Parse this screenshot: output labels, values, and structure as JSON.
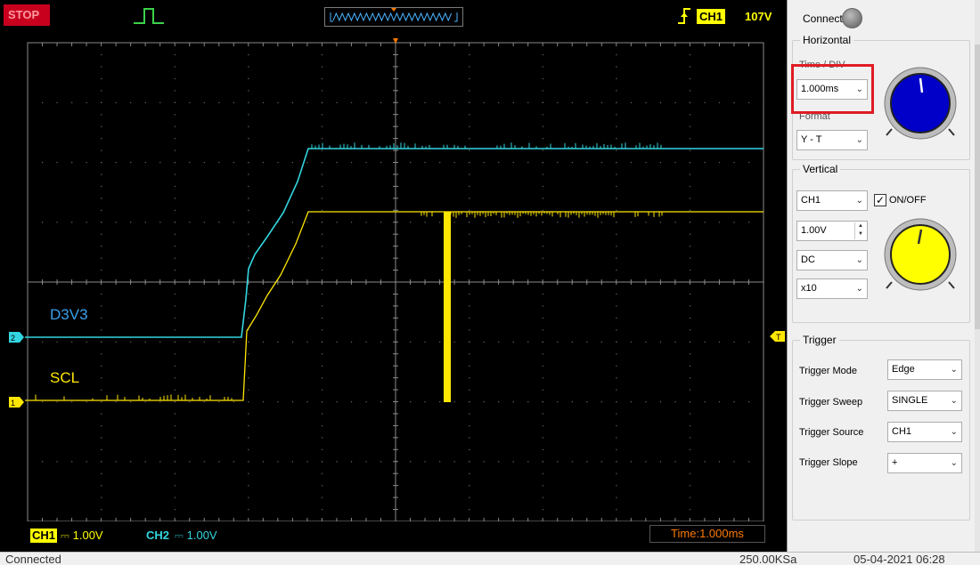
{
  "scope": {
    "status": "STOP",
    "trigger_channel": "CH1",
    "trigger_level": "107V",
    "traces": {
      "d3v3": {
        "label": "D3V3",
        "color": "#33d6e0",
        "marker": "2"
      },
      "scl": {
        "label": "SCL",
        "color": "#ffe600",
        "marker": "1"
      }
    },
    "trigger_marker": "T",
    "bottom": {
      "ch1_tag": "CH1",
      "ch1_value": "⎓ 1.00V",
      "ch2_tag": "CH2",
      "ch2_value": "⎓ 1.00V",
      "time": "Time:1.000ms"
    }
  },
  "panel": {
    "connect_label": "Connect:",
    "horizontal": {
      "title": "Horizontal",
      "time_div_label": "Time / DIV",
      "time_div_value": "1.000ms",
      "format_label": "Format",
      "format_value": "Y - T",
      "knob_color": "#0000c8"
    },
    "vertical": {
      "title": "Vertical",
      "channel_value": "CH1",
      "onoff_label": "ON/OFF",
      "onoff_checked": true,
      "volts_value": "1.00V",
      "coupling_value": "DC",
      "probe_value": "x10",
      "knob_color": "#ffff00"
    },
    "trigger": {
      "title": "Trigger",
      "mode_label": "Trigger Mode",
      "mode_value": "Edge",
      "sweep_label": "Trigger Sweep",
      "sweep_value": "SINGLE",
      "source_label": "Trigger Source",
      "source_value": "CH1",
      "slope_label": "Trigger Slope",
      "slope_value": "+"
    }
  },
  "status_bar": {
    "connection": "Connected",
    "sample_rate": "250.00KSa",
    "datetime": "05-04-2021  06:28"
  }
}
